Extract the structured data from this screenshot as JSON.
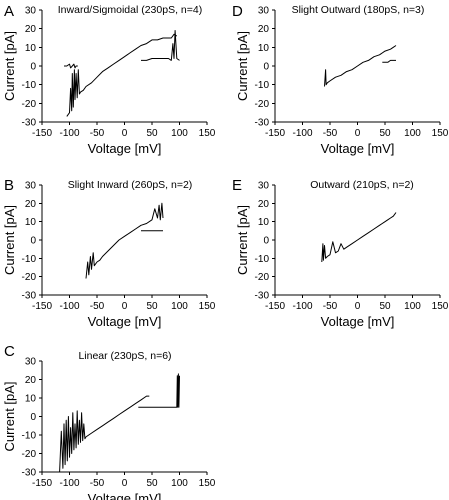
{
  "chart_data": [
    {
      "panel": "A",
      "type": "line",
      "title": "Inward/Sigmoidal (230pS, n=4)",
      "xlabel": "Voltage [mV]",
      "ylabel": "Current [pA]",
      "xlim": [
        -150,
        150
      ],
      "ylim": [
        -30,
        30
      ],
      "xticks": [
        -150,
        -100,
        -50,
        0,
        50,
        100,
        150
      ],
      "yticks": [
        -30,
        -20,
        -10,
        0,
        10,
        20,
        30
      ],
      "series": [
        {
          "x": [
            -105,
            -100,
            -98,
            -96,
            -95,
            -93,
            -91,
            -90,
            -88,
            -86,
            -84,
            -82,
            -80,
            -75,
            -70,
            -60,
            -50,
            -40,
            -30,
            -20,
            -10,
            0,
            10,
            20,
            30,
            40,
            50,
            60,
            70,
            80,
            85,
            90,
            95
          ],
          "y": [
            -27,
            -25,
            -12,
            -24,
            -4,
            -22,
            -2,
            -18,
            -4,
            -17,
            -2,
            -15,
            -14,
            -13,
            -11,
            -9,
            -6,
            -3,
            -1,
            1,
            3,
            5,
            7,
            9,
            11,
            12,
            14,
            14,
            15,
            15,
            15,
            17,
            16
          ]
        },
        {
          "x": [
            -110,
            -105,
            -100,
            -98,
            -95,
            -92,
            -90,
            -88,
            -85
          ],
          "y": [
            0,
            0,
            1,
            -1,
            0,
            1,
            -1,
            0,
            0
          ]
        },
        {
          "x": [
            30,
            40,
            50,
            60,
            70,
            80,
            85,
            88,
            90,
            92,
            95,
            100
          ],
          "y": [
            3,
            3,
            4,
            4,
            4,
            4,
            3,
            12,
            4,
            19,
            4,
            3
          ]
        }
      ]
    },
    {
      "panel": "B",
      "type": "line",
      "title": "Slight Inward (260pS, n=2)",
      "xlabel": "Voltage [mV]",
      "ylabel": "Current [pA]",
      "xlim": [
        -150,
        150
      ],
      "ylim": [
        -30,
        30
      ],
      "xticks": [
        -150,
        -100,
        -50,
        0,
        50,
        100,
        150
      ],
      "yticks": [
        -30,
        -20,
        -10,
        0,
        10,
        20,
        30
      ],
      "series": [
        {
          "x": [
            -70,
            -67,
            -65,
            -62,
            -60,
            -57,
            -55,
            -50,
            -45,
            -40,
            -30,
            -20,
            -10,
            0,
            10,
            20,
            30,
            40,
            50,
            55,
            60,
            63,
            65,
            68,
            70
          ],
          "y": [
            -21,
            -12,
            -19,
            -9,
            -16,
            -7,
            -14,
            -12,
            -11,
            -9,
            -6,
            -3,
            0,
            2,
            4,
            6,
            8,
            9,
            11,
            17,
            12,
            19,
            11,
            20,
            12
          ]
        },
        {
          "x": [
            30,
            40,
            50,
            60,
            70
          ],
          "y": [
            5,
            5,
            5,
            5,
            5
          ]
        }
      ]
    },
    {
      "panel": "C",
      "type": "line",
      "title": "Linear (230pS, n=6)",
      "xlabel": "Voltage [mV]",
      "ylabel": "Current [pA]",
      "xlim": [
        -150,
        150
      ],
      "ylim": [
        -30,
        30
      ],
      "xticks": [
        -150,
        -100,
        -50,
        0,
        50,
        100,
        150
      ],
      "yticks": [
        -30,
        -20,
        -10,
        0,
        10,
        20,
        30
      ],
      "series": [
        {
          "x": [
            -118,
            -115,
            -112,
            -110,
            -108,
            -106,
            -104,
            -102,
            -100,
            -98,
            -96,
            -94,
            -92,
            -90,
            -88,
            -86,
            -84,
            -82,
            -80,
            -78,
            -76,
            -74,
            -72,
            -70,
            -60,
            -50,
            -40,
            -30,
            -20,
            -10,
            0,
            10,
            20,
            30,
            40,
            45
          ],
          "y": [
            -30,
            -8,
            -28,
            -4,
            -26,
            -2,
            -24,
            0,
            -22,
            -6,
            -20,
            2,
            -18,
            -4,
            -17,
            3,
            -15,
            -2,
            -14,
            2,
            -13,
            -4,
            -12,
            -11,
            -9,
            -7,
            -5,
            -3,
            -1,
            1,
            3,
            5,
            7,
            9,
            11,
            11
          ]
        },
        {
          "x": [
            25,
            40,
            50,
            60,
            70,
            80,
            90,
            95,
            96,
            97,
            98,
            99,
            100
          ],
          "y": [
            5,
            5,
            5,
            5,
            5,
            5,
            5,
            5,
            22,
            5,
            23,
            5,
            22
          ]
        }
      ]
    },
    {
      "panel": "D",
      "type": "line",
      "title": "Slight Outward (180pS, n=3)",
      "xlabel": "Voltage [mV]",
      "ylabel": "Current [pA]",
      "xlim": [
        -150,
        150
      ],
      "ylim": [
        -30,
        30
      ],
      "xticks": [
        -150,
        -100,
        -50,
        0,
        50,
        100,
        150
      ],
      "yticks": [
        -30,
        -20,
        -10,
        0,
        10,
        20,
        30
      ],
      "series": [
        {
          "x": [
            -60,
            -58,
            -57,
            -55,
            -50,
            -40,
            -30,
            -20,
            -10,
            0,
            10,
            20,
            30,
            40,
            50,
            60,
            65,
            70
          ],
          "y": [
            -11,
            -2,
            -10,
            -9,
            -8,
            -6,
            -5,
            -3,
            -2,
            0,
            2,
            3,
            5,
            6,
            8,
            9,
            10,
            11
          ]
        },
        {
          "x": [
            45,
            55,
            60,
            65,
            70
          ],
          "y": [
            2,
            2,
            3,
            3,
            3
          ]
        }
      ]
    },
    {
      "panel": "E",
      "type": "line",
      "title": "Outward (210pS, n=2)",
      "xlabel": "Voltage [mV]",
      "ylabel": "Current [pA]",
      "xlim": [
        -150,
        150
      ],
      "ylim": [
        -30,
        30
      ],
      "xticks": [
        -150,
        -100,
        -50,
        0,
        50,
        100,
        150
      ],
      "yticks": [
        -30,
        -20,
        -10,
        0,
        10,
        20,
        30
      ],
      "series": [
        {
          "x": [
            -65,
            -63,
            -62,
            -60,
            -58,
            -55,
            -50,
            -45,
            -40,
            -35,
            -30,
            -25,
            -20,
            -10,
            0,
            10,
            20,
            30,
            40,
            50,
            55,
            60,
            65,
            70
          ],
          "y": [
            -12,
            -2,
            -11,
            -3,
            -10,
            -9,
            -8,
            -1,
            -7,
            -6,
            -2,
            -5,
            -4,
            -2,
            0,
            2,
            4,
            6,
            8,
            10,
            11,
            12,
            13,
            15
          ]
        }
      ]
    }
  ]
}
